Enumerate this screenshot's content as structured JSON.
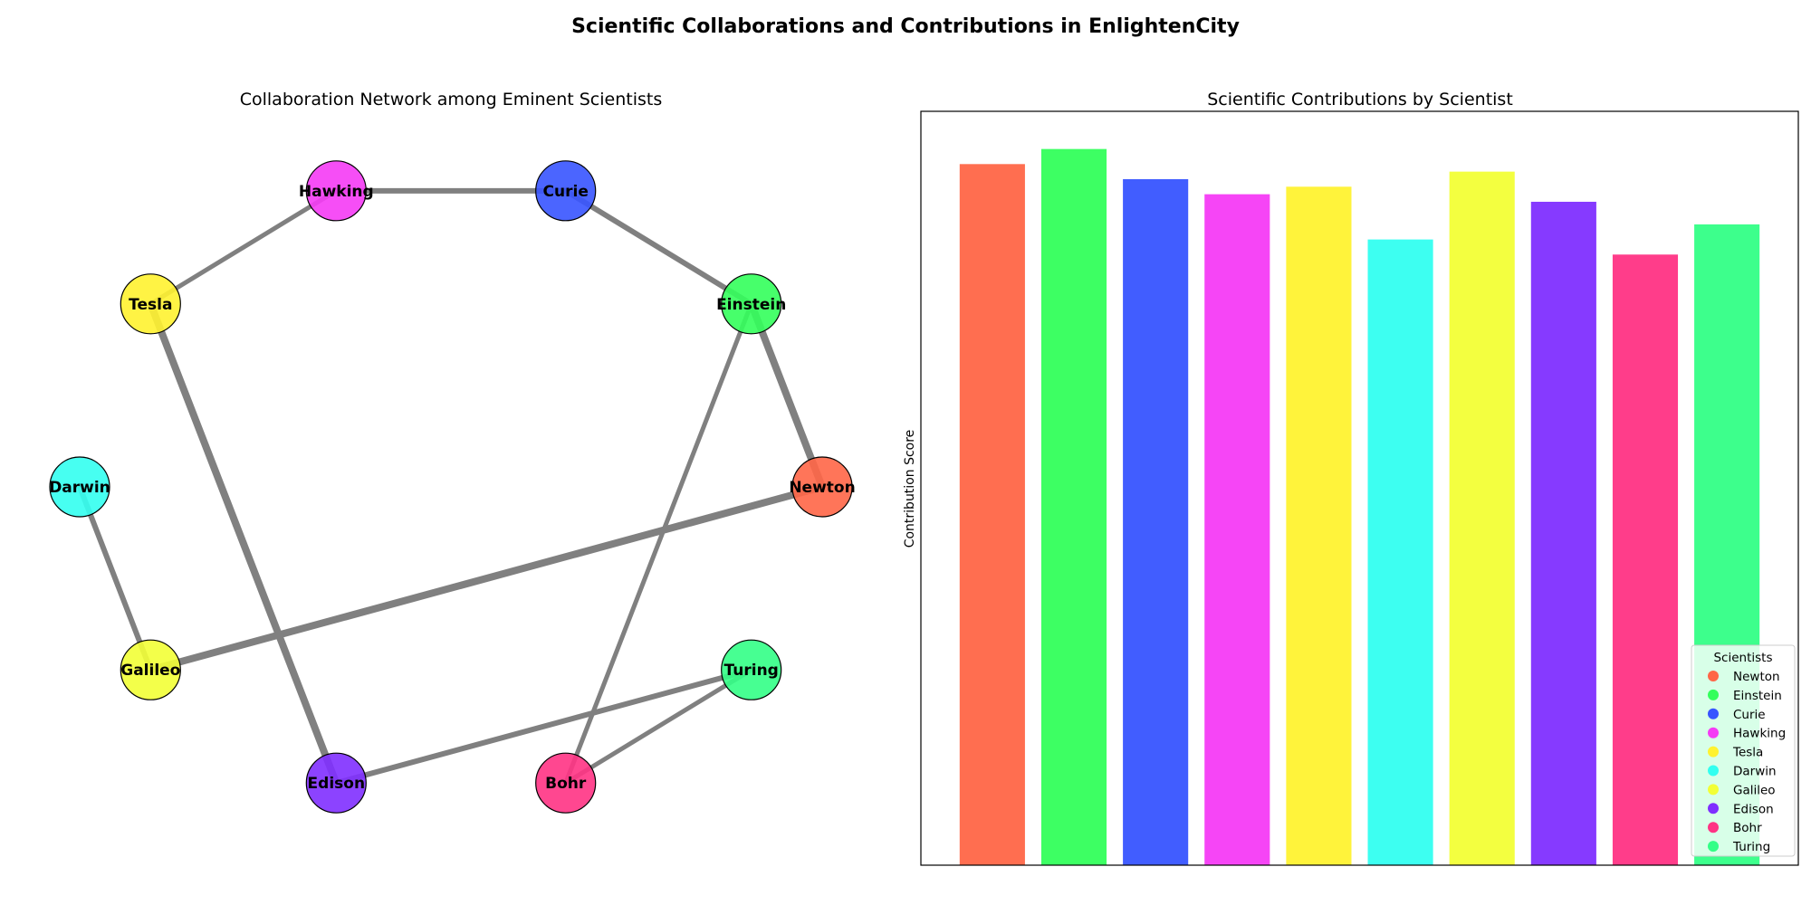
{
  "figure": {
    "suptitle": "Scientific Collaborations and Contributions in EnlightenCity"
  },
  "colors": {
    "Newton": "#ff6647",
    "Einstein": "#33ff5b",
    "Curie": "#3754ff",
    "Hawking": "#f53bf5",
    "Tesla": "#fff230",
    "Darwin": "#33fff0",
    "Galileo": "#f2ff36",
    "Edison": "#7f2fff",
    "Bohr": "#ff3384",
    "Turing": "#33ff86",
    "edge": "#808080"
  },
  "chart_data": [
    {
      "type": "network",
      "title": "Collaboration Network among Eminent Scientists",
      "nodes": [
        "Newton",
        "Einstein",
        "Curie",
        "Hawking",
        "Tesla",
        "Darwin",
        "Galileo",
        "Edison",
        "Bohr",
        "Turing"
      ],
      "edges": [
        {
          "source": "Hawking",
          "target": "Curie",
          "weight": 3
        },
        {
          "source": "Curie",
          "target": "Einstein",
          "weight": 3
        },
        {
          "source": "Einstein",
          "target": "Newton",
          "weight": 4
        },
        {
          "source": "Einstein",
          "target": "Bohr",
          "weight": 2.5
        },
        {
          "source": "Tesla",
          "target": "Hawking",
          "weight": 2.5
        },
        {
          "source": "Tesla",
          "target": "Edison",
          "weight": 4
        },
        {
          "source": "Darwin",
          "target": "Galileo",
          "weight": 3
        },
        {
          "source": "Galileo",
          "target": "Newton",
          "weight": 4
        },
        {
          "source": "Edison",
          "target": "Turing",
          "weight": 3
        },
        {
          "source": "Bohr",
          "target": "Turing",
          "weight": 2.5
        }
      ]
    },
    {
      "type": "bar",
      "title": "Scientific Contributions by Scientist",
      "ylabel": "Contribution Score",
      "xlabel": "",
      "categories": [
        "Newton",
        "Einstein",
        "Curie",
        "Hawking",
        "Tesla",
        "Darwin",
        "Galileo",
        "Edison",
        "Bohr",
        "Turing"
      ],
      "values": [
        93,
        95,
        91,
        89,
        90,
        83,
        92,
        88,
        81,
        85
      ],
      "ylim": [
        0,
        100
      ],
      "legend": {
        "title": "Scientists",
        "location": "lower right",
        "entries": [
          "Newton",
          "Einstein",
          "Curie",
          "Hawking",
          "Tesla",
          "Darwin",
          "Galileo",
          "Edison",
          "Bohr",
          "Turing"
        ]
      }
    }
  ]
}
